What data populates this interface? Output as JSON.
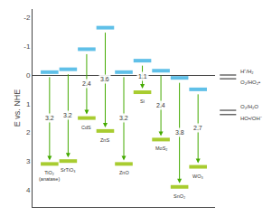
{
  "chart_data": {
    "type": "range",
    "ylabel": "E vs. NHE",
    "categories": [
      "TiO₂\n(anatase)",
      "SrTiO₃",
      "CdS",
      "ZnS",
      "ZnO",
      "Si",
      "MoS₂",
      "SnO₂",
      "WO₃"
    ],
    "series": [
      {
        "color": "#60c0e8",
        "values": [
          -0.1,
          -0.2,
          -0.9,
          -1.65,
          -0.1,
          -0.5,
          -0.15,
          0.1,
          0.5
        ]
      },
      {
        "color": "#a8cc30",
        "values": [
          3.1,
          3.0,
          1.5,
          1.95,
          3.1,
          0.6,
          2.25,
          3.9,
          3.2
        ]
      },
      {
        "type": "arrow",
        "color": "#44aa00",
        "values": [
          3.2,
          3.2,
          2.4,
          3.6,
          3.2,
          1.1,
          2.4,
          3.8,
          2.7
        ],
        "data_labels": true
      }
    ],
    "reference_lines": [
      {
        "label": "H⁺/H₂",
        "value": 0.0
      },
      {
        "label": "O₂/HO₂•",
        "value": 0.13
      },
      {
        "label": "O₂/H₂O",
        "value": 1.23
      },
      {
        "label": "HO•/OH⁻",
        "value": 1.38
      }
    ],
    "ylim": [
      4.6,
      -2.3
    ],
    "yticks": [
      -2,
      -1,
      0,
      1,
      2,
      3,
      4
    ],
    "grid": false,
    "tick_labels": "y"
  }
}
